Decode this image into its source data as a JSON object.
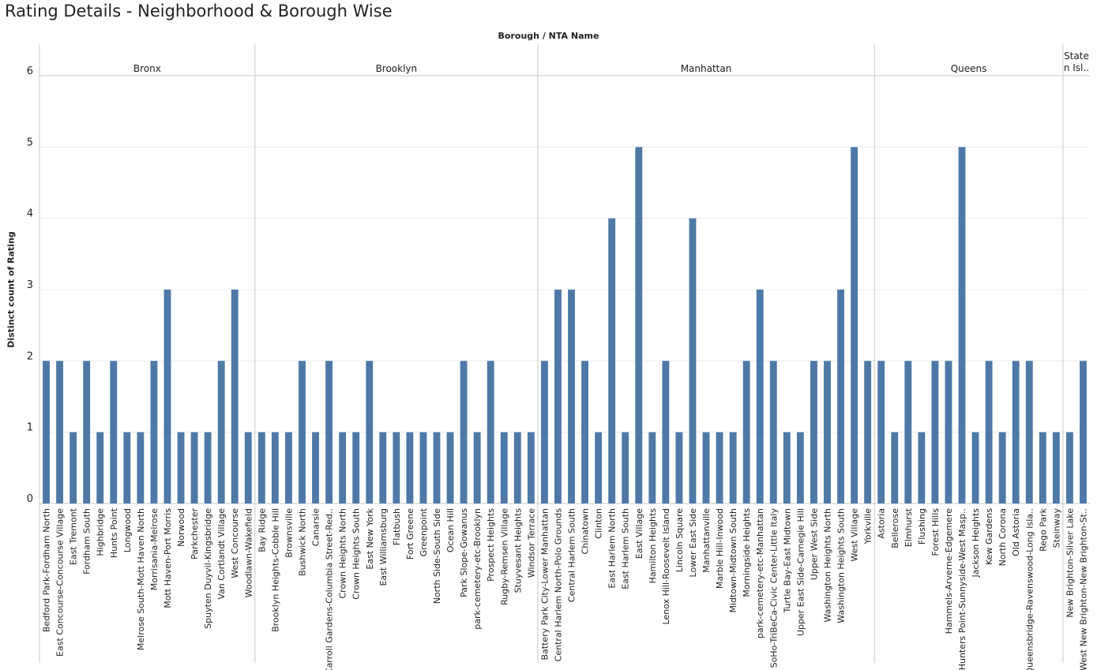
{
  "page": {
    "title": "Rating Details - Neighborhood & Borough Wise"
  },
  "colors": {
    "bar": "#4e79a7",
    "divider": "#c8c8c8",
    "grid": "#ececec",
    "text": "#222222"
  },
  "chart_data": {
    "type": "bar",
    "column_header": "Borough  /  NTA Name",
    "ylabel": "Distinct count of Rating",
    "ylim": [
      0,
      6
    ],
    "yticks": [
      0,
      1,
      2,
      3,
      4,
      5,
      6
    ],
    "groups": [
      {
        "name": "Bronx",
        "categories": [
          {
            "label": "Bedford Park-Fordham North",
            "value": 2
          },
          {
            "label": "East Concourse-Concourse Village",
            "value": 2
          },
          {
            "label": "East Tremont",
            "value": 1
          },
          {
            "label": "Fordham South",
            "value": 2
          },
          {
            "label": "Highbridge",
            "value": 1
          },
          {
            "label": "Hunts Point",
            "value": 2
          },
          {
            "label": "Longwood",
            "value": 1
          },
          {
            "label": "Melrose South-Mott Haven North",
            "value": 1
          },
          {
            "label": "Morrisania-Melrose",
            "value": 2
          },
          {
            "label": "Mott Haven-Port Morris",
            "value": 3
          },
          {
            "label": "Norwood",
            "value": 1
          },
          {
            "label": "Parkchester",
            "value": 1
          },
          {
            "label": "Spuyten Duyvil-Kingsbridge",
            "value": 1
          },
          {
            "label": "Van Cortlandt Village",
            "value": 2
          },
          {
            "label": "West Concourse",
            "value": 3
          },
          {
            "label": "Woodlawn-Wakefield",
            "value": 1
          }
        ]
      },
      {
        "name": "Brooklyn",
        "categories": [
          {
            "label": "Bay Ridge",
            "value": 1
          },
          {
            "label": "Brooklyn Heights-Cobble Hill",
            "value": 1
          },
          {
            "label": "Brownsville",
            "value": 1
          },
          {
            "label": "Bushwick North",
            "value": 2
          },
          {
            "label": "Canarsie",
            "value": 1
          },
          {
            "label": "Carroll Gardens-Columbia Street-Red..",
            "value": 2
          },
          {
            "label": "Crown Heights North",
            "value": 1
          },
          {
            "label": "Crown Heights South",
            "value": 1
          },
          {
            "label": "East New York",
            "value": 2
          },
          {
            "label": "East Williamsburg",
            "value": 1
          },
          {
            "label": "Flatbush",
            "value": 1
          },
          {
            "label": "Fort Greene",
            "value": 1
          },
          {
            "label": "Greenpoint",
            "value": 1
          },
          {
            "label": "North Side-South Side",
            "value": 1
          },
          {
            "label": "Ocean Hill",
            "value": 1
          },
          {
            "label": "Park Slope-Gowanus",
            "value": 2
          },
          {
            "label": "park-cemetery-etc-Brooklyn",
            "value": 1
          },
          {
            "label": "Prospect Heights",
            "value": 2
          },
          {
            "label": "Rugby-Remsen Village",
            "value": 1
          },
          {
            "label": "Stuyvesant Heights",
            "value": 1
          },
          {
            "label": "Windsor Terrace",
            "value": 1
          }
        ]
      },
      {
        "name": "Manhattan",
        "categories": [
          {
            "label": "Battery Park City-Lower Manhattan",
            "value": 2
          },
          {
            "label": "Central Harlem North-Polo Grounds",
            "value": 3
          },
          {
            "label": "Central Harlem South",
            "value": 3
          },
          {
            "label": "Chinatown",
            "value": 2
          },
          {
            "label": "Clinton",
            "value": 1
          },
          {
            "label": "East Harlem North",
            "value": 4
          },
          {
            "label": "East Harlem South",
            "value": 1
          },
          {
            "label": "East Village",
            "value": 5
          },
          {
            "label": "Hamilton Heights",
            "value": 1
          },
          {
            "label": "Lenox Hill-Roosevelt Island",
            "value": 2
          },
          {
            "label": "Lincoln Square",
            "value": 1
          },
          {
            "label": "Lower East Side",
            "value": 4
          },
          {
            "label": "Manhattanville",
            "value": 1
          },
          {
            "label": "Marble Hill-Inwood",
            "value": 1
          },
          {
            "label": "Midtown-Midtown South",
            "value": 1
          },
          {
            "label": "Morningside Heights",
            "value": 2
          },
          {
            "label": "park-cemetery-etc-Manhattan",
            "value": 3
          },
          {
            "label": "SoHo-TriBeCa-Civic Center-Little Italy",
            "value": 2
          },
          {
            "label": "Turtle Bay-East Midtown",
            "value": 1
          },
          {
            "label": "Upper East Side-Carnegie Hill",
            "value": 1
          },
          {
            "label": "Upper West Side",
            "value": 2
          },
          {
            "label": "Washington Heights North",
            "value": 2
          },
          {
            "label": "Washington Heights South",
            "value": 3
          },
          {
            "label": "West Village",
            "value": 5
          },
          {
            "label": "Yorkville",
            "value": 2
          }
        ]
      },
      {
        "name": "Queens",
        "categories": [
          {
            "label": "Astoria",
            "value": 2
          },
          {
            "label": "Bellerose",
            "value": 1
          },
          {
            "label": "Elmhurst",
            "value": 2
          },
          {
            "label": "Flushing",
            "value": 1
          },
          {
            "label": "Forest Hills",
            "value": 2
          },
          {
            "label": "Hammels-Arverne-Edgemere",
            "value": 2
          },
          {
            "label": "Hunters Point-Sunnyside-West Masp..",
            "value": 5
          },
          {
            "label": "Jackson Heights",
            "value": 1
          },
          {
            "label": "Kew Gardens",
            "value": 2
          },
          {
            "label": "North Corona",
            "value": 1
          },
          {
            "label": "Old Astoria",
            "value": 2
          },
          {
            "label": "Queensbridge-Ravenswood-Long Isla..",
            "value": 2
          },
          {
            "label": "Rego Park",
            "value": 1
          },
          {
            "label": "Steinway",
            "value": 1
          }
        ]
      },
      {
        "name": "State\nn Isl..",
        "categories": [
          {
            "label": "New Brighton-Silver Lake",
            "value": 1
          },
          {
            "label": "West New Brighton-New Brighton-St..",
            "value": 2
          }
        ]
      }
    ]
  }
}
